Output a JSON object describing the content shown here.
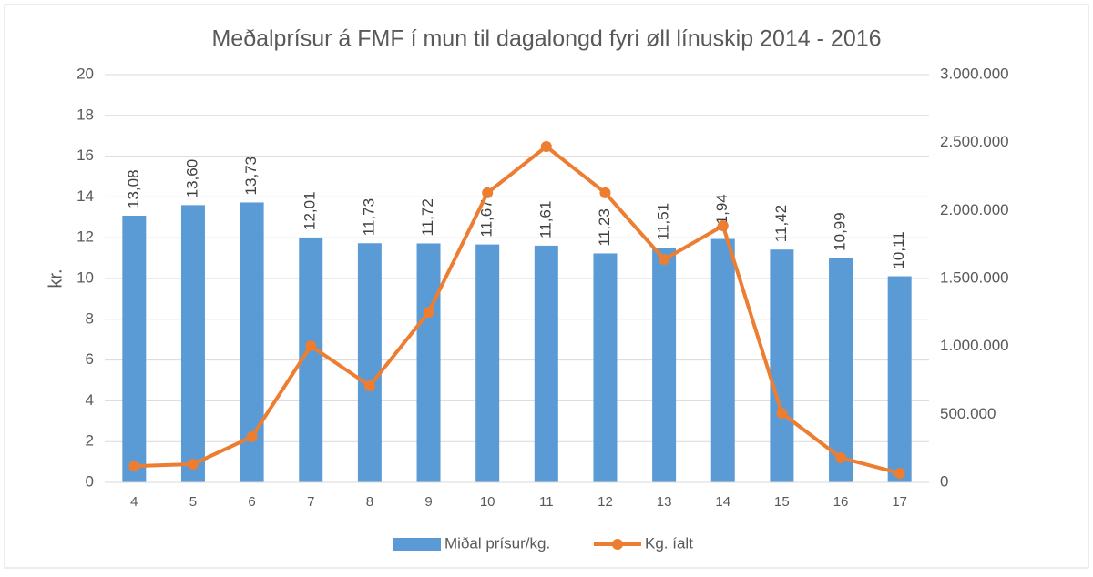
{
  "chart_data": {
    "type": "bar_line",
    "title": "Meðalprísur á FMF í mun til dagalongd fyri øll  línuskip 2014 - 2016",
    "ylabel": "kr.",
    "categories": [
      "4",
      "5",
      "6",
      "7",
      "8",
      "9",
      "10",
      "11",
      "12",
      "13",
      "14",
      "15",
      "16",
      "17"
    ],
    "series": [
      {
        "name": "Miðal prísur/kg.",
        "type": "bar",
        "color": "#5b9bd5",
        "values": [
          13.08,
          13.6,
          13.73,
          12.01,
          11.73,
          11.72,
          11.67,
          11.61,
          11.23,
          11.51,
          11.94,
          11.42,
          10.99,
          10.11
        ],
        "value_labels": [
          "13,08",
          "13,60",
          "13,73",
          "12,01",
          "11,73",
          "11,72",
          "11,67",
          "11,61",
          "11,23",
          "11,51",
          "11,94",
          "11,42",
          "10,99",
          "10,11"
        ]
      },
      {
        "name": "Kg. íalt",
        "type": "line",
        "axis": "y2",
        "color": "#ed7d31",
        "values": [
          120000,
          134000,
          335000,
          1004000,
          710000,
          1252000,
          2130000,
          2471000,
          2130000,
          1640000,
          1888000,
          509000,
          181000,
          67000
        ]
      }
    ],
    "ylim": [
      0,
      20
    ],
    "yticks": [
      0,
      2,
      4,
      6,
      8,
      10,
      12,
      14,
      16,
      18,
      20
    ],
    "y2lim": [
      0,
      3000000
    ],
    "y2ticks": [
      0,
      {
        "value": 500000,
        "label": "500.000"
      },
      {
        "value": 1000000,
        "label": "1.000.000"
      },
      {
        "value": 1500000,
        "label": "1.500.000"
      },
      {
        "value": 2000000,
        "label": "2.000.000"
      },
      {
        "value": 2500000,
        "label": "2.500.000"
      },
      {
        "value": 3000000,
        "label": "3.000.000"
      }
    ],
    "grid": true,
    "legend": "bottom"
  }
}
